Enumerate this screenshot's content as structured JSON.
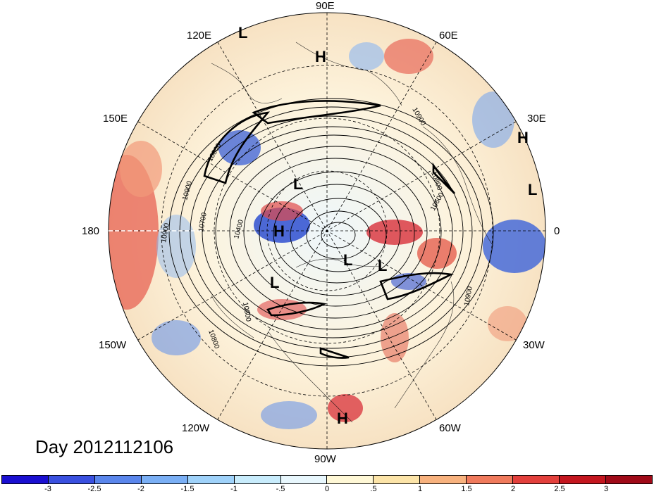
{
  "map": {
    "title": "Day 2012112106",
    "longitude_labels": [
      "90E",
      "60E",
      "30E",
      "0",
      "30W",
      "60W",
      "90W",
      "120W",
      "150W",
      "180",
      "150E",
      "120E"
    ],
    "contour_labels": [
      "10900",
      "10900",
      "10800",
      "10800",
      "10600",
      "10400",
      "10700",
      "10900",
      "10800",
      "10900",
      "10800"
    ],
    "pressure_centers": [
      "L",
      "H",
      "H",
      "L",
      "L",
      "H",
      "L",
      "L",
      "L",
      "H"
    ],
    "colors": {
      "anomaly_negative": "#3a6fd8",
      "anomaly_positive": "#d83a3a",
      "coast_lines": "#000000"
    }
  },
  "colorbar": {
    "tick_labels": [
      "-3",
      "-2.5",
      "-2",
      "-1.5",
      "-1",
      "-.5",
      "0",
      ".5",
      "1",
      "1.5",
      "2",
      "2.5",
      "3"
    ],
    "colors": [
      "#1a0fd1",
      "#3a50e0",
      "#5a86ec",
      "#7aaff5",
      "#9fd2fa",
      "#c8ecfc",
      "#e8f7fd",
      "#fff8d6",
      "#fce4a8",
      "#f8b27e",
      "#f07a5c",
      "#e3403c",
      "#c4161f",
      "#a00a18"
    ]
  }
}
